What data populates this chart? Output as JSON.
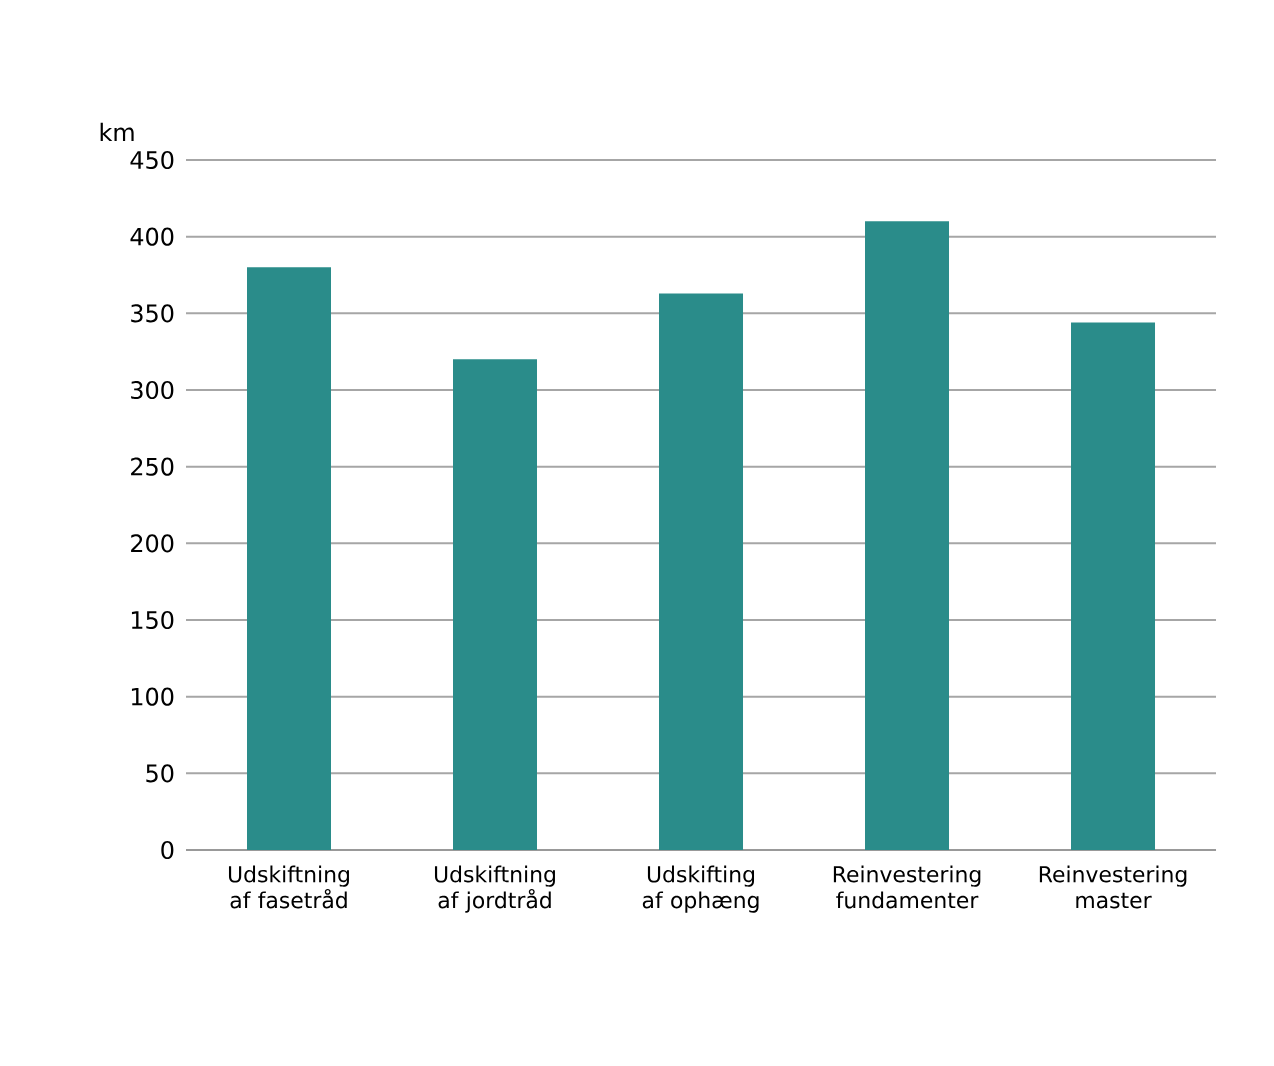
{
  "chart_data": {
    "type": "bar",
    "ylabel": "km",
    "categories": [
      "Udskiftning af fasetråd",
      "Udskiftning af jordtråd",
      "Udskifting af ophæng",
      "Reinvestering fundamenter",
      "Reinvestering master"
    ],
    "values": [
      380,
      320,
      363,
      410,
      344
    ],
    "color": "#2a8c8a",
    "ylim": [
      0,
      450
    ],
    "yticks": [
      0,
      50,
      100,
      150,
      200,
      250,
      300,
      350,
      400,
      450
    ],
    "grid": "y"
  }
}
